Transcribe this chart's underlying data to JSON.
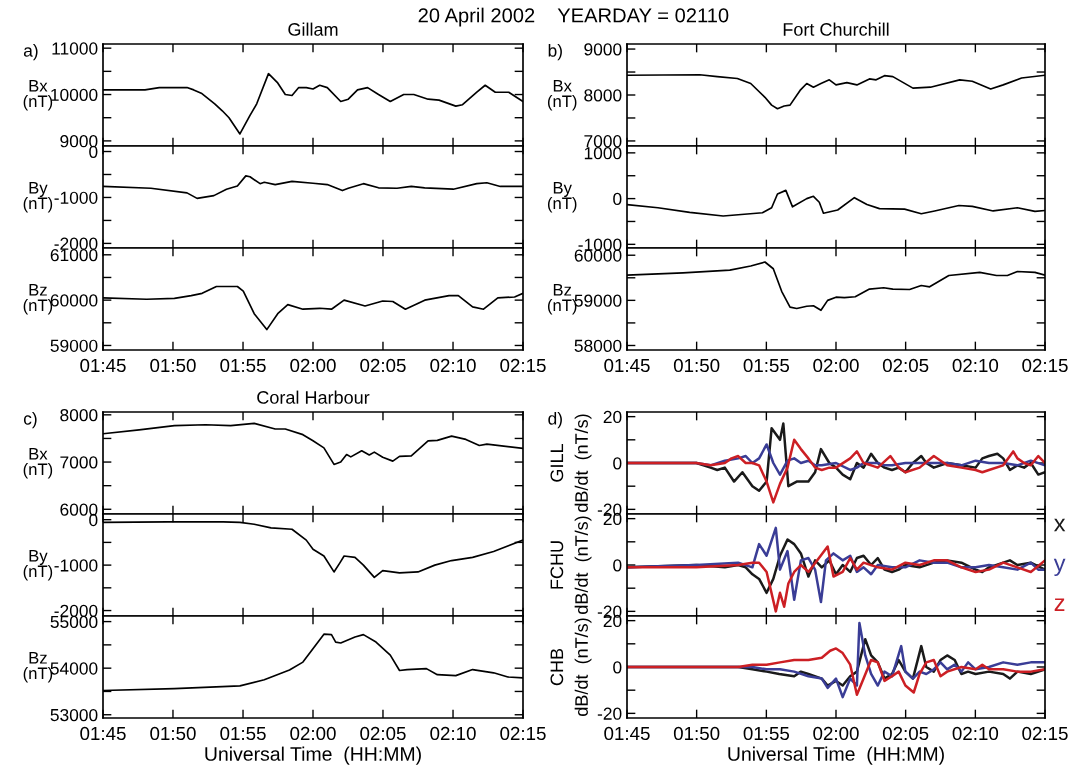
{
  "chart_data": [
    {
      "type": "line",
      "title": "Gillam",
      "ylabel": "Bx\n(nT)",
      "annotations": [
        "20 April 2002    YEARDAY = 02110",
        "a)"
      ],
      "tick_labels": "y",
      "xlim": [
        1.75,
        2.25
      ],
      "xticks": [
        {
          "value": 1.75,
          "label": null
        },
        {
          "value": 1.8333,
          "label": null
        },
        {
          "value": 1.9167,
          "label": null
        },
        {
          "value": 2.0,
          "label": null
        },
        {
          "value": 2.0833,
          "label": null
        },
        {
          "value": 2.1667,
          "label": null
        },
        {
          "value": 2.25,
          "label": null
        }
      ],
      "ylim": [
        8890,
        11090
      ],
      "yticks": [
        9000,
        {
          "value": 9500,
          "label": null
        },
        10000,
        {
          "value": 10500,
          "label": null
        },
        11000
      ],
      "series": [
        {
          "color": "#000000",
          "x": [
            1.75,
            1.8,
            1.817,
            1.85,
            1.858,
            1.867,
            1.883,
            1.892,
            1.9,
            1.913,
            1.925,
            1.933,
            1.947,
            1.958,
            1.967,
            1.975,
            1.983,
            1.992,
            2.0,
            2.008,
            2.017,
            2.033,
            2.042,
            2.053,
            2.065,
            2.078,
            2.092,
            2.108,
            2.12,
            2.137,
            2.15,
            2.17,
            2.178,
            2.195,
            2.205,
            2.217,
            2.233,
            2.25
          ],
          "values": [
            10100,
            10100,
            10150,
            10150,
            10100,
            10030,
            9800,
            9650,
            9500,
            9150,
            9550,
            9800,
            10450,
            10250,
            10000,
            9980,
            10150,
            10150,
            10120,
            10200,
            10150,
            9850,
            9900,
            10100,
            10150,
            10000,
            9850,
            10000,
            10000,
            9900,
            9880,
            9750,
            9780,
            10050,
            10200,
            10050,
            10050,
            9850
          ]
        }
      ]
    },
    {
      "type": "line",
      "ylabel": "By\n(nT)",
      "tick_labels": "y",
      "xlim": [
        1.75,
        2.25
      ],
      "xticks": [
        {
          "value": 1.75,
          "label": null
        },
        {
          "value": 1.8333,
          "label": null
        },
        {
          "value": 1.9167,
          "label": null
        },
        {
          "value": 2.0,
          "label": null
        },
        {
          "value": 2.0833,
          "label": null
        },
        {
          "value": 2.1667,
          "label": null
        },
        {
          "value": 2.25,
          "label": null
        }
      ],
      "ylim": [
        -2100,
        120
      ],
      "yticks": [
        -2000,
        {
          "value": -1500,
          "label": null
        },
        -1000,
        {
          "value": -500,
          "label": null
        },
        0
      ],
      "series": [
        {
          "color": "#000000",
          "x": [
            1.75,
            1.807,
            1.85,
            1.862,
            1.882,
            1.897,
            1.91,
            1.92,
            1.925,
            1.937,
            1.942,
            1.955,
            1.975,
            2.0,
            2.017,
            2.035,
            2.042,
            2.06,
            2.078,
            2.1,
            2.117,
            2.133,
            2.167,
            2.195,
            2.207,
            2.223,
            2.25
          ],
          "values": [
            -760,
            -800,
            -900,
            -1020,
            -960,
            -820,
            -750,
            -530,
            -550,
            -700,
            -670,
            -720,
            -650,
            -690,
            -720,
            -850,
            -800,
            -700,
            -790,
            -800,
            -760,
            -790,
            -820,
            -700,
            -680,
            -760,
            -760
          ]
        }
      ]
    },
    {
      "type": "line",
      "ylabel": "Bz\n(nT)",
      "xlim": [
        1.75,
        2.25
      ],
      "xticks": [
        {
          "value": 1.75,
          "label": "01:45"
        },
        {
          "value": 1.8333,
          "label": "01:50"
        },
        {
          "value": 1.9167,
          "label": "01:55"
        },
        {
          "value": 2.0,
          "label": "02:00"
        },
        {
          "value": 2.0833,
          "label": "02:05"
        },
        {
          "value": 2.1667,
          "label": "02:10"
        },
        {
          "value": 2.25,
          "label": "02:15"
        }
      ],
      "ylim": [
        58900,
        61150
      ],
      "yticks": [
        59000,
        {
          "value": 59500,
          "label": null
        },
        60000,
        {
          "value": 60500,
          "label": null
        },
        61000
      ],
      "series": [
        {
          "color": "#000000",
          "x": [
            1.75,
            1.802,
            1.835,
            1.855,
            1.868,
            1.885,
            1.91,
            1.917,
            1.93,
            1.945,
            1.958,
            1.97,
            1.988,
            2.008,
            2.022,
            2.037,
            2.062,
            2.083,
            2.095,
            2.11,
            2.133,
            2.162,
            2.173,
            2.19,
            2.203,
            2.22,
            2.24,
            2.25
          ],
          "values": [
            60050,
            60020,
            60040,
            60100,
            60150,
            60300,
            60300,
            60200,
            59700,
            59350,
            59700,
            59900,
            59800,
            59820,
            59800,
            60000,
            59870,
            59980,
            59970,
            59800,
            60000,
            60100,
            60100,
            59850,
            59800,
            60050,
            60070,
            60150
          ]
        }
      ]
    },
    {
      "type": "line",
      "title": "Fort Churchill",
      "ylabel": "Bx\n(nT)",
      "annotations": [
        "b)"
      ],
      "tick_labels": "y",
      "xlim": [
        1.75,
        2.25
      ],
      "xticks": [
        {
          "value": 1.75,
          "label": null
        },
        {
          "value": 1.8333,
          "label": null
        },
        {
          "value": 1.9167,
          "label": null
        },
        {
          "value": 2.0,
          "label": null
        },
        {
          "value": 2.0833,
          "label": null
        },
        {
          "value": 2.1667,
          "label": null
        },
        {
          "value": 2.25,
          "label": null
        }
      ],
      "ylim": [
        6890,
        9110
      ],
      "yticks": [
        7000,
        {
          "value": 7500,
          "label": null
        },
        8000,
        {
          "value": 8500,
          "label": null
        },
        9000
      ],
      "series": [
        {
          "color": "#000000",
          "x": [
            1.75,
            1.837,
            1.858,
            1.882,
            1.898,
            1.915,
            1.923,
            1.93,
            1.938,
            1.945,
            1.957,
            1.965,
            1.973,
            1.982,
            1.992,
            2.0,
            2.013,
            2.025,
            2.04,
            2.048,
            2.058,
            2.068,
            2.092,
            2.113,
            2.148,
            2.163,
            2.185,
            2.2,
            2.222,
            2.25
          ],
          "values": [
            8430,
            8440,
            8400,
            8360,
            8250,
            7950,
            7780,
            7700,
            7760,
            7780,
            8100,
            8250,
            8170,
            8250,
            8330,
            8220,
            8270,
            8220,
            8350,
            8330,
            8420,
            8400,
            8150,
            8170,
            8330,
            8300,
            8130,
            8220,
            8370,
            8430
          ]
        }
      ]
    },
    {
      "type": "line",
      "ylabel": "By\n(nT)",
      "tick_labels": "y",
      "xlim": [
        1.75,
        2.25
      ],
      "xticks": [
        {
          "value": 1.75,
          "label": null
        },
        {
          "value": 1.8333,
          "label": null
        },
        {
          "value": 1.9167,
          "label": null
        },
        {
          "value": 2.0,
          "label": null
        },
        {
          "value": 2.0833,
          "label": null
        },
        {
          "value": 2.1667,
          "label": null
        },
        {
          "value": 2.25,
          "label": null
        }
      ],
      "ylim": [
        -1080,
        1150
      ],
      "yticks": [
        -1000,
        {
          "value": -500,
          "label": null
        },
        0,
        {
          "value": 500,
          "label": null
        },
        1000
      ],
      "series": [
        {
          "color": "#000000",
          "x": [
            1.75,
            1.787,
            1.825,
            1.865,
            1.912,
            1.923,
            1.93,
            1.94,
            1.948,
            1.965,
            1.973,
            1.98,
            1.985,
            2.002,
            2.022,
            2.037,
            2.052,
            2.082,
            2.102,
            2.118,
            2.147,
            2.163,
            2.188,
            2.217,
            2.238,
            2.25
          ],
          "values": [
            -130,
            -200,
            -300,
            -380,
            -310,
            -200,
            100,
            180,
            -180,
            0,
            50,
            -80,
            -320,
            -250,
            20,
            -130,
            -220,
            -230,
            -330,
            -270,
            -150,
            -170,
            -270,
            -200,
            -280,
            -260
          ]
        }
      ]
    },
    {
      "type": "line",
      "ylabel": "Bz\n(nT)",
      "xlim": [
        1.75,
        2.25
      ],
      "xticks": [
        {
          "value": 1.75,
          "label": "01:45"
        },
        {
          "value": 1.8333,
          "label": "01:50"
        },
        {
          "value": 1.9167,
          "label": "01:55"
        },
        {
          "value": 2.0,
          "label": "02:00"
        },
        {
          "value": 2.0833,
          "label": "02:05"
        },
        {
          "value": 2.1667,
          "label": "02:10"
        },
        {
          "value": 2.25,
          "label": "02:15"
        }
      ],
      "ylim": [
        57900,
        60160
      ],
      "yticks": [
        58000,
        {
          "value": 58500,
          "label": null
        },
        59000,
        {
          "value": 59500,
          "label": null
        },
        60000
      ],
      "series": [
        {
          "color": "#000000",
          "x": [
            1.75,
            1.817,
            1.873,
            1.898,
            1.915,
            1.925,
            1.935,
            1.945,
            1.953,
            1.965,
            1.973,
            1.982,
            1.99,
            2.0,
            2.01,
            2.023,
            2.04,
            2.057,
            2.068,
            2.088,
            2.102,
            2.112,
            2.135,
            2.172,
            2.192,
            2.205,
            2.217,
            2.238,
            2.25
          ],
          "values": [
            59560,
            59610,
            59670,
            59760,
            59850,
            59700,
            59200,
            58850,
            58820,
            58870,
            58880,
            58780,
            59000,
            59070,
            59060,
            59080,
            59250,
            59280,
            59250,
            59240,
            59330,
            59300,
            59550,
            59620,
            59550,
            59550,
            59640,
            59620,
            59560
          ]
        }
      ]
    },
    {
      "type": "line",
      "title": "Coral Harbour",
      "ylabel": "Bx\n(nT)",
      "annotations": [
        "c)"
      ],
      "tick_labels": "y",
      "xlim": [
        1.75,
        2.25
      ],
      "xticks": [
        {
          "value": 1.75,
          "label": null
        },
        {
          "value": 1.8333,
          "label": null
        },
        {
          "value": 1.9167,
          "label": null
        },
        {
          "value": 2.0,
          "label": null
        },
        {
          "value": 2.0833,
          "label": null
        },
        {
          "value": 2.1667,
          "label": null
        },
        {
          "value": 2.25,
          "label": null
        }
      ],
      "ylim": [
        5900,
        8060
      ],
      "yticks": [
        6000,
        {
          "value": 6500,
          "label": null
        },
        7000,
        {
          "value": 7500,
          "label": null
        },
        8000
      ],
      "series": [
        {
          "color": "#000000",
          "x": [
            1.75,
            1.793,
            1.835,
            1.872,
            1.902,
            1.93,
            1.955,
            1.967,
            1.988,
            2.0,
            2.013,
            2.025,
            2.033,
            2.04,
            2.045,
            2.058,
            2.067,
            2.073,
            2.083,
            2.095,
            2.103,
            2.117,
            2.137,
            2.148,
            2.165,
            2.182,
            2.198,
            2.207,
            2.25
          ],
          "values": [
            7600,
            7680,
            7770,
            7790,
            7770,
            7820,
            7700,
            7700,
            7580,
            7450,
            7300,
            6950,
            7000,
            7160,
            7110,
            7240,
            7150,
            7210,
            7100,
            7020,
            7120,
            7130,
            7450,
            7460,
            7550,
            7480,
            7350,
            7380,
            7290
          ]
        }
      ]
    },
    {
      "type": "line",
      "ylabel": "By\n(nT)",
      "tick_labels": "y",
      "xlim": [
        1.75,
        2.25
      ],
      "xticks": [
        {
          "value": 1.75,
          "label": null
        },
        {
          "value": 1.8333,
          "label": null
        },
        {
          "value": 1.9167,
          "label": null
        },
        {
          "value": 2.0,
          "label": null
        },
        {
          "value": 2.0833,
          "label": null
        },
        {
          "value": 2.1667,
          "label": null
        },
        {
          "value": 2.25,
          "label": null
        }
      ],
      "ylim": [
        -2120,
        125
      ],
      "yticks": [
        -2000,
        {
          "value": -1500,
          "label": null
        },
        -1000,
        {
          "value": -500,
          "label": null
        },
        0
      ],
      "series": [
        {
          "color": "#000000",
          "x": [
            1.75,
            1.827,
            1.893,
            1.913,
            1.93,
            1.95,
            1.975,
            1.992,
            2.0,
            2.013,
            2.025,
            2.032,
            2.037,
            2.05,
            2.06,
            2.073,
            2.083,
            2.103,
            2.125,
            2.145,
            2.165,
            2.19,
            2.215,
            2.25
          ],
          "values": [
            -60,
            -50,
            -50,
            -60,
            -100,
            -180,
            -210,
            -450,
            -650,
            -800,
            -1150,
            -950,
            -800,
            -830,
            -1000,
            -1270,
            -1120,
            -1170,
            -1150,
            -1000,
            -900,
            -830,
            -700,
            -450
          ]
        }
      ]
    },
    {
      "type": "line",
      "ylabel": "Bz\n(nT)",
      "xlabel": "Universal Time  (HH:MM)",
      "xlim": [
        1.75,
        2.25
      ],
      "xticks": [
        {
          "value": 1.75,
          "label": "01:45"
        },
        {
          "value": 1.8333,
          "label": "01:50"
        },
        {
          "value": 1.9167,
          "label": "01:55"
        },
        {
          "value": 2.0,
          "label": "02:00"
        },
        {
          "value": 2.0833,
          "label": "02:05"
        },
        {
          "value": 2.1667,
          "label": "02:10"
        },
        {
          "value": 2.25,
          "label": "02:15"
        }
      ],
      "ylim": [
        52930,
        55120
      ],
      "yticks": [
        53000,
        {
          "value": 53500,
          "label": null
        },
        54000,
        {
          "value": 54500,
          "label": null
        },
        55000
      ],
      "series": [
        {
          "color": "#000000",
          "x": [
            1.75,
            1.835,
            1.913,
            1.942,
            1.972,
            1.988,
            2.013,
            2.022,
            2.027,
            2.033,
            2.05,
            2.06,
            2.075,
            2.092,
            2.103,
            2.112,
            2.135,
            2.148,
            2.17,
            2.19,
            2.215,
            2.232,
            2.25
          ],
          "values": [
            53520,
            53560,
            53620,
            53750,
            53960,
            54130,
            54730,
            54720,
            54560,
            54540,
            54670,
            54720,
            54560,
            54280,
            53950,
            53970,
            53990,
            53860,
            53840,
            53970,
            53900,
            53810,
            53790
          ]
        }
      ]
    },
    {
      "type": "line",
      "ylabel": "GILL\ndB/dt  (nT/s)",
      "annotations": [
        "d)"
      ],
      "tick_labels": "y",
      "xlim": [
        1.75,
        2.25
      ],
      "xticks": [
        {
          "value": 1.75,
          "label": null
        },
        {
          "value": 1.8333,
          "label": null
        },
        {
          "value": 1.9167,
          "label": null
        },
        {
          "value": 2.0,
          "label": null
        },
        {
          "value": 2.0833,
          "label": null
        },
        {
          "value": 2.1667,
          "label": null
        },
        {
          "value": 2.25,
          "label": null
        }
      ],
      "ylim": [
        -22,
        22
      ],
      "yticks": [
        -20,
        {
          "value": -10,
          "label": null
        },
        0,
        {
          "value": 10,
          "label": null
        },
        20
      ],
      "series": [
        {
          "color": "#1a1a1a",
          "x": [
            1.75,
            1.833,
            1.85,
            1.858,
            1.867,
            1.878,
            1.888,
            1.9,
            1.908,
            1.917,
            1.923,
            1.933,
            1.937,
            1.943,
            1.953,
            1.967,
            1.975,
            1.982,
            1.992,
            2.0,
            2.008,
            2.017,
            2.025,
            2.033,
            2.042,
            2.05,
            2.058,
            2.067,
            2.075,
            2.083,
            2.092,
            2.102,
            2.108,
            2.117,
            2.133,
            2.15,
            2.167,
            2.175,
            2.183,
            2.193,
            2.2,
            2.208,
            2.217,
            2.225,
            2.233,
            2.242,
            2.25
          ],
          "values": [
            0,
            0,
            -2,
            -3,
            -2,
            -8,
            -4,
            -10,
            -12,
            -8,
            15,
            10,
            17,
            -10,
            -8,
            -8,
            -4,
            6,
            0,
            -2,
            -5,
            -7,
            0,
            -2,
            4,
            0,
            -2,
            -3,
            -2,
            -4,
            0,
            3,
            0,
            -2,
            0,
            -1,
            -2,
            2,
            3,
            4,
            2,
            -3,
            -1,
            -2,
            0,
            -5,
            -4
          ]
        },
        {
          "color": "#3a3d96",
          "x": [
            1.75,
            1.833,
            1.85,
            1.867,
            1.883,
            1.892,
            1.9,
            1.908,
            1.917,
            1.925,
            1.933,
            1.942,
            1.95,
            1.958,
            1.967,
            1.975,
            1.983,
            2.0,
            2.017,
            2.025,
            2.033,
            2.05,
            2.058,
            2.067,
            2.083,
            2.1,
            2.117,
            2.133,
            2.15,
            2.167,
            2.183,
            2.2,
            2.217,
            2.233,
            2.25
          ],
          "values": [
            0,
            0,
            -1,
            1,
            2,
            3,
            0,
            2,
            8,
            0,
            -5,
            1,
            2,
            0,
            1,
            -1,
            -1,
            0,
            -3,
            -2,
            0,
            0,
            -1,
            -1,
            0,
            0,
            0,
            0,
            -1,
            1,
            0,
            0,
            -1,
            1,
            -1
          ]
        },
        {
          "color": "#cc1f24",
          "x": [
            1.75,
            1.833,
            1.85,
            1.867,
            1.875,
            1.883,
            1.892,
            1.9,
            1.908,
            1.917,
            1.925,
            1.933,
            1.942,
            1.95,
            1.958,
            1.967,
            1.975,
            1.983,
            1.992,
            2.0,
            2.017,
            2.025,
            2.033,
            2.042,
            2.05,
            2.065,
            2.075,
            2.083,
            2.1,
            2.117,
            2.133,
            2.15,
            2.167,
            2.175,
            2.183,
            2.2,
            2.212,
            2.217,
            2.225,
            2.233,
            2.242,
            2.25
          ],
          "values": [
            0,
            0,
            -1,
            0,
            2,
            3,
            0,
            0,
            -1,
            -8,
            -17,
            -9,
            -2,
            10,
            6,
            2,
            -2,
            -3,
            -2,
            -2,
            2,
            5,
            0,
            -1,
            -2,
            3,
            -2,
            -4,
            -2,
            3,
            -1,
            -2,
            -3,
            -4,
            -3,
            -1,
            5,
            2,
            0,
            -1,
            3,
            0
          ]
        }
      ]
    },
    {
      "type": "line",
      "ylabel": "FCHU\ndB/dt  (nT/s)",
      "legend": "right",
      "tick_labels": "y",
      "xlim": [
        1.75,
        2.25
      ],
      "xticks": [
        {
          "value": 1.75,
          "label": null
        },
        {
          "value": 1.8333,
          "label": null
        },
        {
          "value": 1.9167,
          "label": null
        },
        {
          "value": 2.0,
          "label": null
        },
        {
          "value": 2.0833,
          "label": null
        },
        {
          "value": 2.1667,
          "label": null
        },
        {
          "value": 2.25,
          "label": null
        }
      ],
      "ylim": [
        -22,
        22
      ],
      "yticks": [
        -20,
        {
          "value": -10,
          "label": null
        },
        0,
        {
          "value": 10,
          "label": null
        },
        20
      ],
      "series": [
        {
          "name": "x",
          "color": "#1a1a1a",
          "x": [
            1.75,
            1.833,
            1.867,
            1.883,
            1.892,
            1.9,
            1.908,
            1.917,
            1.925,
            1.933,
            1.942,
            1.95,
            1.958,
            1.967,
            1.975,
            1.983,
            1.992,
            2.0,
            2.008,
            2.017,
            2.025,
            2.033,
            2.042,
            2.05,
            2.058,
            2.067,
            2.075,
            2.083,
            2.1,
            2.117,
            2.133,
            2.15,
            2.167,
            2.175,
            2.183,
            2.2,
            2.208,
            2.217,
            2.233,
            2.25
          ],
          "values": [
            -1,
            0,
            -1,
            0,
            -1,
            -4,
            -6,
            -12,
            -6,
            4,
            11,
            9,
            5,
            -5,
            2,
            -1,
            2,
            -4,
            0,
            -3,
            3,
            4,
            0,
            3,
            -2,
            -3,
            -2,
            0,
            -1,
            1,
            2,
            1,
            -2,
            -3,
            -1,
            1,
            2,
            0,
            1,
            -2
          ]
        },
        {
          "name": "y",
          "color": "#3a3d96",
          "x": [
            1.75,
            1.833,
            1.883,
            1.9,
            1.908,
            1.917,
            1.928,
            1.933,
            1.942,
            1.95,
            1.958,
            1.967,
            1.975,
            1.982,
            1.988,
            1.997,
            2.008,
            2.017,
            2.025,
            2.033,
            2.042,
            2.05,
            2.067,
            2.083,
            2.1,
            2.117,
            2.133,
            2.15,
            2.167,
            2.183,
            2.2,
            2.217,
            2.233,
            2.242,
            2.25
          ],
          "values": [
            -1,
            0,
            1,
            -1,
            9,
            4,
            16,
            -2,
            6,
            -15,
            2,
            3,
            -2,
            -16,
            2,
            5,
            2,
            4,
            -3,
            -1,
            -4,
            0,
            -1,
            -1,
            2,
            1,
            1,
            -1,
            -1,
            0,
            -1,
            -2,
            1,
            -2,
            -2
          ]
        },
        {
          "name": "z",
          "color": "#cc1f24",
          "x": [
            1.75,
            1.833,
            1.883,
            1.9,
            1.908,
            1.917,
            1.928,
            1.933,
            1.938,
            1.943,
            1.95,
            1.958,
            1.967,
            1.99,
            1.997,
            2.008,
            2.017,
            2.025,
            2.033,
            2.05,
            2.067,
            2.083,
            2.1,
            2.117,
            2.133,
            2.15,
            2.167,
            2.183,
            2.2,
            2.217,
            2.233,
            2.25
          ],
          "values": [
            -1,
            -1,
            0,
            1,
            1,
            -3,
            -20,
            -12,
            -18,
            -8,
            -3,
            0,
            -3,
            8,
            -5,
            -3,
            3,
            -2,
            1,
            -1,
            -2,
            1,
            0,
            2,
            2,
            -1,
            -3,
            -2,
            1,
            -1,
            -3,
            2
          ]
        }
      ]
    },
    {
      "type": "line",
      "ylabel": "CHB\ndB/dt  (nT/s)",
      "xlabel": "Universal Time  (HH:MM)",
      "xlim": [
        1.75,
        2.25
      ],
      "xticks": [
        {
          "value": 1.75,
          "label": "01:45"
        },
        {
          "value": 1.8333,
          "label": "01:50"
        },
        {
          "value": 1.9167,
          "label": "01:55"
        },
        {
          "value": 2.0,
          "label": "02:00"
        },
        {
          "value": 2.0833,
          "label": "02:05"
        },
        {
          "value": 2.1667,
          "label": "02:10"
        },
        {
          "value": 2.25,
          "label": "02:15"
        }
      ],
      "ylim": [
        -22,
        22
      ],
      "yticks": [
        -20,
        {
          "value": -10,
          "label": null
        },
        0,
        {
          "value": 10,
          "label": null
        },
        20
      ],
      "series": [
        {
          "color": "#1a1a1a",
          "x": [
            1.75,
            1.883,
            1.9,
            1.917,
            1.932,
            1.95,
            1.958,
            1.967,
            1.983,
            1.99,
            2.0,
            2.008,
            2.017,
            2.025,
            2.035,
            2.042,
            2.05,
            2.058,
            2.067,
            2.075,
            2.083,
            2.092,
            2.102,
            2.108,
            2.117,
            2.125,
            2.133,
            2.142,
            2.15,
            2.158,
            2.167,
            2.183,
            2.2,
            2.208,
            2.217,
            2.233,
            2.25
          ],
          "values": [
            0,
            0,
            -1,
            -2,
            -3,
            -4,
            -2,
            -3,
            -5,
            -8,
            -6,
            -8,
            -4,
            -2,
            12,
            5,
            2,
            -5,
            -3,
            3,
            -2,
            -5,
            9,
            0,
            -2,
            3,
            5,
            3,
            -3,
            -2,
            -3,
            -2,
            -3,
            -5,
            -2,
            -3,
            -1
          ]
        },
        {
          "color": "#3a3d96",
          "x": [
            1.75,
            1.9,
            1.917,
            1.933,
            1.95,
            1.967,
            1.983,
            1.99,
            2.0,
            2.008,
            2.017,
            2.025,
            2.028,
            2.035,
            2.042,
            2.05,
            2.058,
            2.067,
            2.078,
            2.083,
            2.092,
            2.1,
            2.108,
            2.117,
            2.125,
            2.133,
            2.142,
            2.15,
            2.158,
            2.167,
            2.183,
            2.2,
            2.217,
            2.233,
            2.25
          ],
          "values": [
            0,
            0,
            -1,
            -1,
            -2,
            -4,
            -5,
            -9,
            -5,
            -13,
            -5,
            -8,
            19,
            5,
            -3,
            -8,
            -2,
            -4,
            9,
            -2,
            -5,
            -2,
            -3,
            -1,
            2,
            -1,
            1,
            -2,
            2,
            -1,
            0,
            2,
            1,
            2,
            2
          ]
        },
        {
          "color": "#cc1f24",
          "x": [
            1.75,
            1.883,
            1.9,
            1.917,
            1.933,
            1.95,
            1.967,
            1.983,
            1.993,
            2.0,
            2.008,
            2.017,
            2.025,
            2.033,
            2.042,
            2.05,
            2.058,
            2.067,
            2.075,
            2.083,
            2.093,
            2.1,
            2.108,
            2.117,
            2.125,
            2.133,
            2.15,
            2.167,
            2.175,
            2.183,
            2.2,
            2.217,
            2.233,
            2.25
          ],
          "values": [
            0,
            0,
            1,
            1,
            2,
            3,
            3,
            4,
            7,
            8,
            6,
            1,
            -12,
            -5,
            3,
            2,
            -6,
            -4,
            -2,
            -8,
            -11,
            -3,
            2,
            3,
            -4,
            -2,
            0,
            -1,
            1,
            -1,
            -1,
            -2,
            -2,
            -1
          ]
        }
      ]
    }
  ]
}
